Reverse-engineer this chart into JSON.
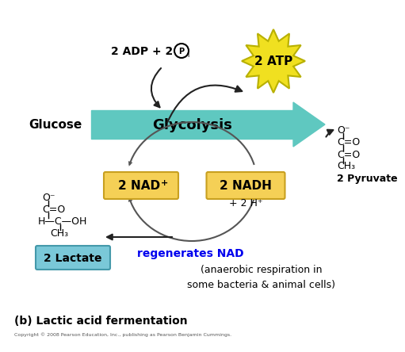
{
  "bg_color": "#ffffff",
  "title": "(b) Lactic acid fermentation",
  "copyright": "Copyright © 2008 Pearson Education, Inc., publishing as Pearson Benjamin Cummings.",
  "glycolysis_color": "#5fc8c0",
  "glycolysis_text": "Glycolysis",
  "nad_box_color": "#f5d056",
  "nad_box_border": "#c8a020",
  "atp_star_color": "#f0e020",
  "atp_star_border": "#b8b000",
  "atp_text": "2 ATP",
  "glucose_text": "Glucose",
  "pyruvate_text": "2 Pyruvate",
  "lactate_box_color": "#7ac8d8",
  "lactate_box_border": "#4499aa",
  "lactate_text": "2 Lactate",
  "regenerates_text": "regenerates NAD",
  "regenerates_color": "#0000ee",
  "anaerobic_text": "(anaerobic respiration in\nsome bacteria & animal cells)",
  "arrow_color": "#222222",
  "arc_color": "#555555"
}
